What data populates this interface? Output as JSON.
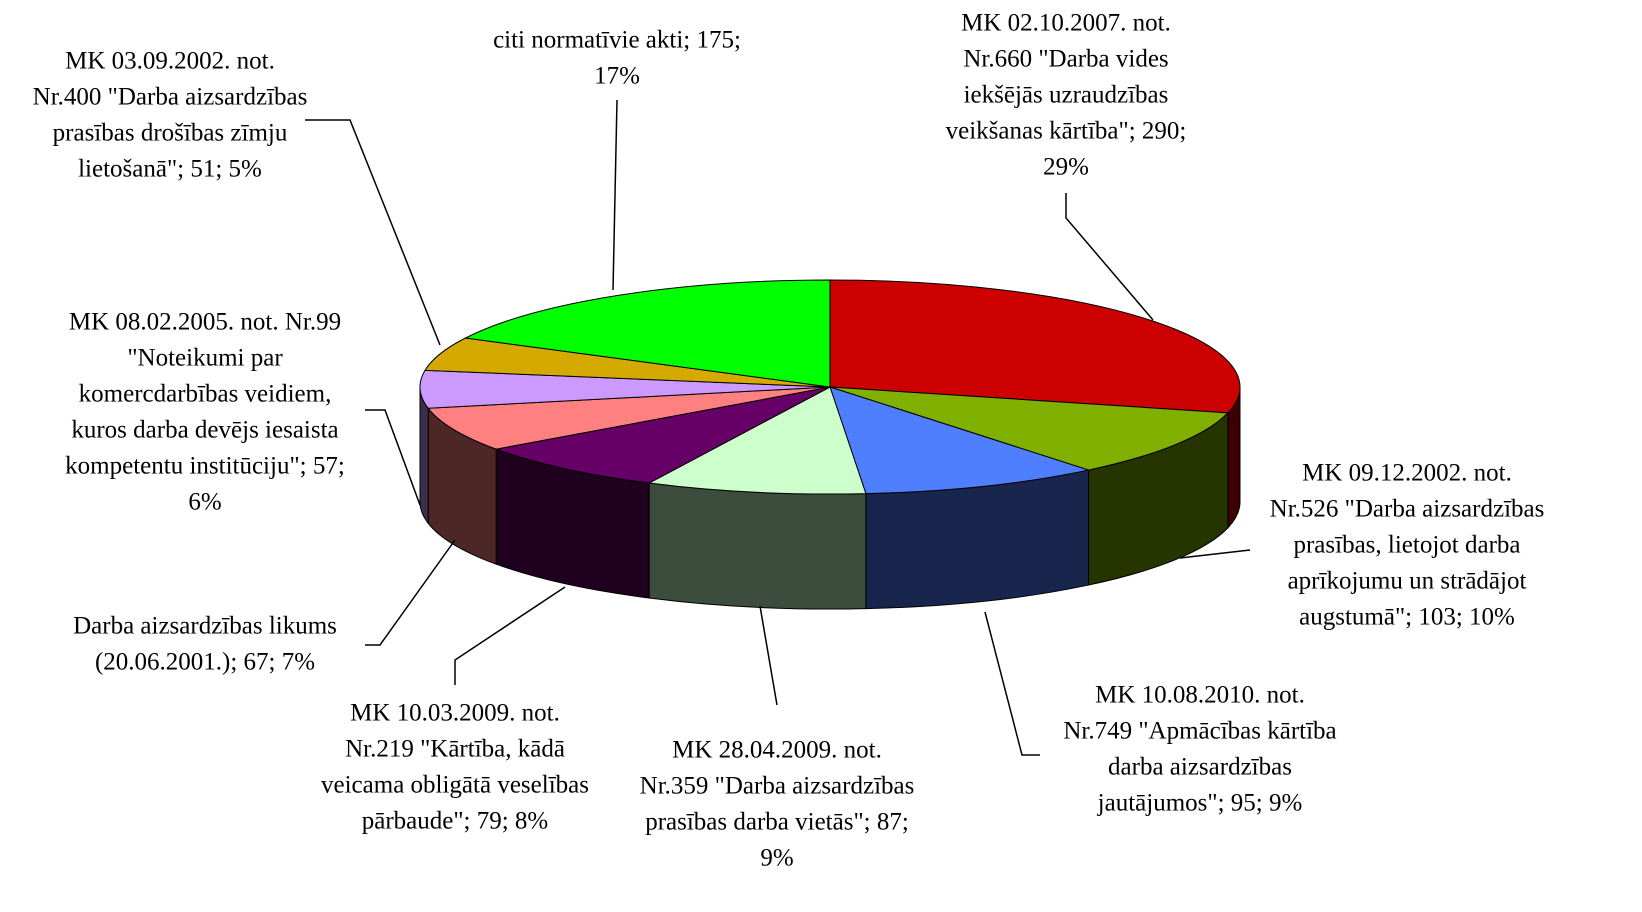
{
  "chart_data": {
    "type": "pie3d",
    "categories": [
      "MK 02.10.2007. not. Nr.660",
      "MK 09.12.2002. not. Nr.526",
      "MK 10.08.2010. not. Nr.749",
      "MK 28.04.2009. not. Nr.359",
      "MK 10.03.2009. not. Nr.219",
      "Darba aizsardzības likums",
      "MK 08.02.2005. not. Nr.99",
      "MK 03.09.2002. not. Nr.400",
      "citi normatīvie akti"
    ],
    "labels": [
      [
        "MK 02.10.2007. not.",
        "Nr.660 \"Darba vides",
        "iekšējās uzraudzības",
        "veikšanas kārtība\"; 290;",
        "29%"
      ],
      [
        "MK 09.12.2002. not.",
        "Nr.526 \"Darba aizsardzības",
        "prasības, lietojot darba",
        "aprīkojumu un strādājot",
        "augstumā\"; 103; 10%"
      ],
      [
        "MK 10.08.2010. not.",
        "Nr.749 \"Apmācības kārtība",
        "darba aizsardzības",
        "jautājumos\"; 95; 9%"
      ],
      [
        "MK 28.04.2009. not.",
        "Nr.359 \"Darba aizsardzības",
        "prasības darba vietās\"; 87;",
        "9%"
      ],
      [
        "MK 10.03.2009. not.",
        "Nr.219 \"Kārtība, kādā",
        "veicama obligātā veselības",
        "pārbaude\"; 79; 8%"
      ],
      [
        "Darba aizsardzības likums",
        "(20.06.2001.); 67; 7%"
      ],
      [
        "MK 08.02.2005. not. Nr.99",
        "\"Noteikumi par",
        "komercdarbības veidiem,",
        "kuros darba devējs iesaista",
        "kompetentu institūciju\"; 57;",
        "6%"
      ],
      [
        "MK 03.09.2002. not.",
        "Nr.400 \"Darba aizsardzības",
        "prasības drošības zīmju",
        "lietošanā\"; 51; 5%"
      ],
      [
        "citi normatīvie akti; 175;",
        "17%"
      ]
    ],
    "values": [
      290,
      103,
      95,
      87,
      79,
      67,
      57,
      51,
      175
    ],
    "colors": [
      "#cc0000",
      "#80b000",
      "#4f7fff",
      "#ccffcc",
      "#660066",
      "#ff8080",
      "#cc99ff",
      "#d4aa00",
      "#00ff00"
    ]
  }
}
